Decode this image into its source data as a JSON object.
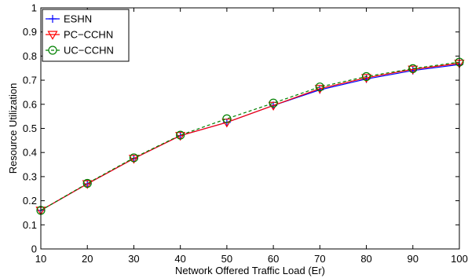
{
  "chart_data": {
    "type": "line",
    "xlabel": "Network Offered Traffic Load (Er)",
    "ylabel": "Resource Utilization",
    "xlim": [
      10,
      100
    ],
    "ylim": [
      0,
      1
    ],
    "xticks": [
      "10",
      "20",
      "30",
      "40",
      "50",
      "60",
      "70",
      "80",
      "90",
      "100"
    ],
    "yticks": [
      "0",
      "0.1",
      "0.2",
      "0.3",
      "0.4",
      "0.5",
      "0.6",
      "0.7",
      "0.8",
      "0.9",
      "1"
    ],
    "grid": false,
    "legend_position": "top-left",
    "x": [
      10,
      20,
      30,
      40,
      50,
      60,
      70,
      80,
      90,
      100
    ],
    "series": [
      {
        "name": "ESHN",
        "values": [
          0.16,
          0.27,
          0.375,
          0.47,
          0.525,
          0.595,
          0.66,
          0.705,
          0.74,
          0.765
        ],
        "color": "#0000ff",
        "marker": "plus",
        "line_style": "solid"
      },
      {
        "name": "PC−CCHN",
        "values": [
          0.16,
          0.27,
          0.375,
          0.47,
          0.525,
          0.595,
          0.665,
          0.71,
          0.745,
          0.77
        ],
        "color": "#ff0000",
        "marker": "triangle-down",
        "line_style": "solid"
      },
      {
        "name": "UC−CCHN",
        "values": [
          0.16,
          0.272,
          0.378,
          0.472,
          0.54,
          0.605,
          0.672,
          0.715,
          0.748,
          0.775
        ],
        "color": "#008000",
        "marker": "circle",
        "line_style": "dashed"
      }
    ]
  }
}
